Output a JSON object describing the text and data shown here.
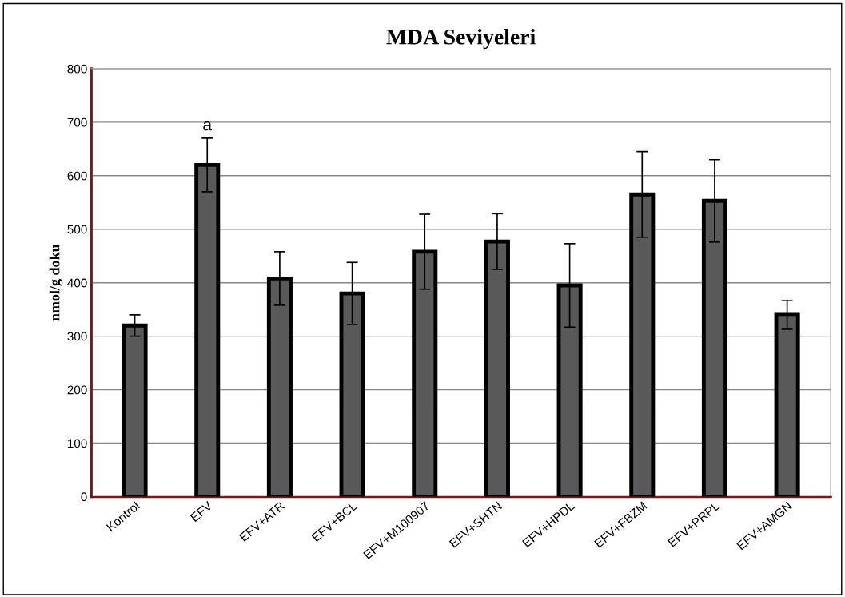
{
  "chart_data": {
    "type": "bar",
    "title": "MDA Seviyeleri",
    "ylabel": "nmol/g doku",
    "categories": [
      "Kontrol",
      "EFV",
      "EFV+ATR",
      "EFV+BCL",
      "EFV+M100907",
      "EFV+SHTN",
      "EFV+HPDL",
      "EFV+FBZM",
      "EFV+PRPL",
      "EFV+AMGN"
    ],
    "values": [
      320,
      620,
      408,
      380,
      458,
      477,
      395,
      565,
      553,
      340
    ],
    "errors": [
      20,
      50,
      50,
      58,
      70,
      52,
      78,
      80,
      77,
      27
    ],
    "color": "#595959",
    "annotations": [
      {
        "text": "a",
        "x": "EFV",
        "y": 670
      }
    ],
    "ylim": [
      0,
      800
    ],
    "yticks": [
      0,
      100,
      200,
      300,
      400,
      500,
      600,
      700,
      800
    ],
    "grid": "y"
  }
}
